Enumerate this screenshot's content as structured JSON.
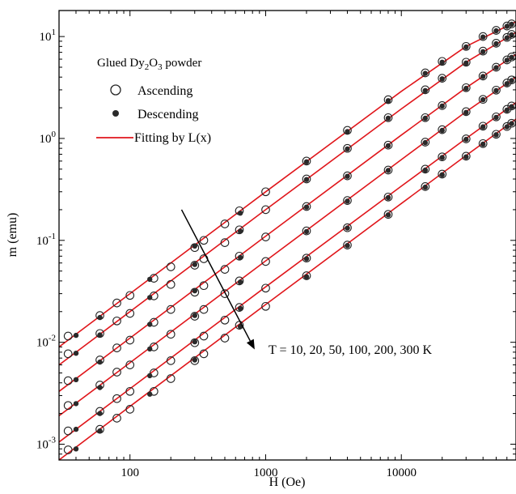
{
  "chart_data": {
    "type": "scatter",
    "xlabel": "H (Oe)",
    "ylabel": "m (emu)",
    "x_scale": "log",
    "y_scale": "log",
    "xlim": [
      30,
      70000
    ],
    "ylim": [
      0.0007,
      18
    ],
    "x_ticks": [
      {
        "value": 100,
        "label": "100"
      },
      {
        "value": 1000,
        "label": "1000"
      },
      {
        "value": 10000,
        "label": "10000"
      }
    ],
    "y_ticks": [
      {
        "value": 0.001,
        "base": "10",
        "exp": "-3"
      },
      {
        "value": 0.01,
        "base": "10",
        "exp": "-2"
      },
      {
        "value": 0.1,
        "base": "10",
        "exp": "-1"
      },
      {
        "value": 1,
        "base": "10",
        "exp": "0"
      },
      {
        "value": 10,
        "base": "10",
        "exp": "1"
      }
    ],
    "legend": {
      "title_main": "Glued Dy",
      "title_sub1": "2",
      "title_mid": "O",
      "title_sub2": "3",
      "title_end": " powder",
      "entries": [
        {
          "label": "Ascending",
          "marker": "open-circle"
        },
        {
          "label": "Descending",
          "marker": "filled-circle"
        },
        {
          "label": "Fitting by L(x)",
          "marker": "line"
        }
      ],
      "position": "top-left"
    },
    "annotation": {
      "text": "T = 10, 20, 50, 100, 200, 300 K",
      "arrow_from": {
        "x": 240,
        "y": 0.2
      },
      "arrow_to": {
        "x": 830,
        "y": 0.0085
      }
    },
    "colors": {
      "fit": "#e0161b",
      "marker": "#2a2a2a"
    },
    "series": [
      {
        "T_index": 0,
        "ascending_x": [
          35,
          60,
          80,
          100,
          150,
          200,
          300,
          350,
          500,
          640,
          1000,
          2000,
          4000,
          8000,
          15000,
          20000,
          30000,
          40000,
          50000,
          60000,
          65000
        ],
        "ascending_y": [
          0.0115,
          0.0183,
          0.0243,
          0.0288,
          0.0425,
          0.055,
          0.085,
          0.1,
          0.145,
          0.195,
          0.3,
          0.6,
          1.2,
          2.4,
          4.4,
          5.7,
          8.0,
          10.0,
          11.5,
          12.7,
          13.3
        ],
        "descending_x": [
          40,
          60,
          140,
          300,
          650,
          2000,
          4000,
          8000,
          15000,
          20000,
          30000,
          40000,
          50000,
          60000,
          65000
        ],
        "descending_y": [
          0.0117,
          0.0175,
          0.0415,
          0.088,
          0.185,
          0.59,
          1.17,
          2.35,
          4.35,
          5.6,
          7.9,
          9.9,
          11.4,
          12.6,
          13.2
        ],
        "fit_x": [
          30,
          100,
          1000,
          10000,
          30000,
          70000
        ],
        "fit_y": [
          0.009,
          0.03,
          0.3,
          2.9,
          8.0,
          14.0
        ]
      },
      {
        "T_index": 1,
        "ascending_x": [
          35,
          60,
          80,
          100,
          150,
          200,
          300,
          350,
          500,
          640,
          1000,
          2000,
          4000,
          8000,
          15000,
          20000,
          30000,
          40000,
          50000,
          60000,
          65000
        ],
        "ascending_y": [
          0.0077,
          0.0122,
          0.0162,
          0.0192,
          0.0285,
          0.037,
          0.057,
          0.066,
          0.095,
          0.127,
          0.2,
          0.4,
          0.8,
          1.6,
          3.0,
          3.9,
          5.6,
          7.2,
          8.6,
          9.8,
          10.5
        ],
        "descending_x": [
          40,
          60,
          140,
          300,
          650,
          2000,
          4000,
          8000,
          15000,
          20000,
          30000,
          40000,
          50000,
          60000,
          65000
        ],
        "descending_y": [
          0.0078,
          0.0118,
          0.0275,
          0.058,
          0.123,
          0.395,
          0.79,
          1.58,
          2.95,
          3.85,
          5.5,
          7.1,
          8.5,
          9.7,
          10.4
        ],
        "fit_x": [
          30,
          100,
          1000,
          10000,
          30000,
          70000
        ],
        "fit_y": [
          0.006,
          0.02,
          0.2,
          1.95,
          5.6,
          11.0
        ]
      },
      {
        "T_index": 2,
        "ascending_x": [
          35,
          60,
          80,
          100,
          150,
          200,
          300,
          350,
          500,
          640,
          1000,
          2000,
          4000,
          8000,
          15000,
          20000,
          30000,
          40000,
          50000,
          60000,
          65000
        ],
        "ascending_y": [
          0.0042,
          0.0067,
          0.0088,
          0.0105,
          0.0157,
          0.021,
          0.031,
          0.036,
          0.052,
          0.07,
          0.108,
          0.215,
          0.43,
          0.86,
          1.6,
          2.1,
          3.15,
          4.1,
          5.0,
          5.9,
          6.3
        ],
        "descending_x": [
          40,
          60,
          140,
          300,
          650,
          2000,
          4000,
          8000,
          15000,
          20000,
          30000,
          40000,
          50000,
          60000,
          65000
        ],
        "descending_y": [
          0.0043,
          0.0064,
          0.015,
          0.032,
          0.068,
          0.212,
          0.425,
          0.85,
          1.58,
          2.08,
          3.1,
          4.05,
          4.95,
          5.85,
          6.25
        ],
        "fit_x": [
          30,
          100,
          1000,
          10000,
          30000,
          70000
        ],
        "fit_y": [
          0.0033,
          0.011,
          0.11,
          1.08,
          3.15,
          6.7
        ]
      },
      {
        "T_index": 3,
        "ascending_x": [
          35,
          60,
          80,
          100,
          150,
          200,
          300,
          350,
          500,
          640,
          1000,
          2000,
          4000,
          8000,
          15000,
          20000,
          30000,
          40000,
          50000,
          60000,
          65000
        ],
        "ascending_y": [
          0.0024,
          0.0038,
          0.0051,
          0.006,
          0.009,
          0.012,
          0.018,
          0.021,
          0.03,
          0.04,
          0.062,
          0.124,
          0.246,
          0.49,
          0.92,
          1.22,
          1.83,
          2.42,
          2.98,
          3.5,
          3.75
        ],
        "descending_x": [
          40,
          60,
          140,
          300,
          650,
          2000,
          4000,
          8000,
          15000,
          20000,
          30000,
          40000,
          50000,
          60000,
          65000
        ],
        "descending_y": [
          0.0025,
          0.0036,
          0.0086,
          0.0183,
          0.039,
          0.122,
          0.243,
          0.485,
          0.91,
          1.2,
          1.8,
          2.4,
          2.95,
          3.45,
          3.7
        ],
        "fit_x": [
          30,
          100,
          1000,
          10000,
          30000,
          70000
        ],
        "fit_y": [
          0.0019,
          0.0063,
          0.063,
          0.62,
          1.83,
          4.0
        ]
      },
      {
        "T_index": 4,
        "ascending_x": [
          35,
          60,
          80,
          100,
          150,
          200,
          300,
          350,
          500,
          640,
          1000,
          2000,
          4000,
          8000,
          15000,
          20000,
          30000,
          40000,
          50000,
          60000,
          65000
        ],
        "ascending_y": [
          0.00135,
          0.0021,
          0.0028,
          0.0033,
          0.005,
          0.0066,
          0.0099,
          0.0115,
          0.0165,
          0.022,
          0.034,
          0.067,
          0.133,
          0.266,
          0.5,
          0.66,
          0.99,
          1.32,
          1.63,
          1.93,
          2.08
        ],
        "descending_x": [
          40,
          60,
          140,
          300,
          650,
          2000,
          4000,
          8000,
          15000,
          20000,
          30000,
          40000,
          50000,
          60000,
          65000
        ],
        "descending_y": [
          0.0014,
          0.002,
          0.0047,
          0.0101,
          0.0215,
          0.066,
          0.132,
          0.263,
          0.49,
          0.65,
          0.98,
          1.3,
          1.61,
          1.9,
          2.05
        ],
        "fit_x": [
          30,
          100,
          1000,
          10000,
          30000,
          70000
        ],
        "fit_y": [
          0.00105,
          0.0035,
          0.035,
          0.34,
          1.0,
          2.25
        ]
      },
      {
        "T_index": 5,
        "ascending_x": [
          35,
          60,
          80,
          100,
          150,
          200,
          300,
          350,
          500,
          640,
          1000,
          2000,
          4000,
          8000,
          15000,
          20000,
          30000,
          40000,
          50000,
          60000,
          65000
        ],
        "ascending_y": [
          0.00088,
          0.0014,
          0.0018,
          0.0022,
          0.0033,
          0.0044,
          0.0066,
          0.0077,
          0.011,
          0.0147,
          0.0225,
          0.045,
          0.09,
          0.18,
          0.337,
          0.447,
          0.67,
          0.89,
          1.1,
          1.31,
          1.41
        ],
        "descending_x": [
          40,
          60,
          140,
          300,
          650,
          2000,
          4000,
          8000,
          15000,
          20000,
          30000,
          40000,
          50000,
          60000,
          65000
        ],
        "descending_y": [
          0.0009,
          0.00135,
          0.0031,
          0.0067,
          0.0143,
          0.044,
          0.089,
          0.178,
          0.333,
          0.44,
          0.66,
          0.88,
          1.09,
          1.3,
          1.4
        ],
        "fit_x": [
          30,
          100,
          1000,
          10000,
          30000,
          70000
        ],
        "fit_y": [
          0.0007,
          0.00235,
          0.0235,
          0.23,
          0.68,
          1.55
        ]
      }
    ]
  }
}
